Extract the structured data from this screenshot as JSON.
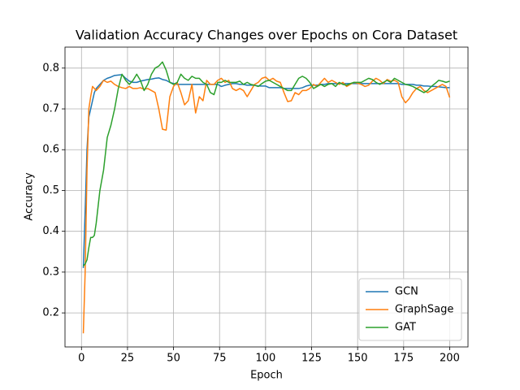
{
  "chart_data": {
    "type": "line",
    "title": "Validation Accuracy Changes over Epochs on Cora Dataset",
    "x_label": "Epoch",
    "y_label": "Accuracy",
    "x": [
      1,
      2,
      3,
      4,
      5,
      6,
      7,
      8,
      10,
      12,
      14,
      16,
      18,
      20,
      22,
      24,
      26,
      28,
      30,
      32,
      34,
      36,
      38,
      40,
      42,
      44,
      46,
      48,
      50,
      52,
      54,
      56,
      58,
      60,
      62,
      64,
      66,
      68,
      70,
      72,
      74,
      76,
      78,
      80,
      82,
      84,
      86,
      88,
      90,
      92,
      94,
      96,
      98,
      100,
      102,
      104,
      106,
      108,
      110,
      112,
      114,
      116,
      118,
      120,
      122,
      124,
      126,
      128,
      130,
      132,
      134,
      136,
      138,
      140,
      142,
      144,
      146,
      148,
      150,
      152,
      154,
      156,
      158,
      160,
      162,
      164,
      166,
      168,
      170,
      172,
      174,
      176,
      178,
      180,
      182,
      184,
      186,
      188,
      190,
      192,
      194,
      196,
      198,
      200
    ],
    "series": [
      {
        "name": "GCN",
        "color": "#1f77b4",
        "values": [
          0.31,
          0.45,
          0.6,
          0.68,
          0.7,
          0.72,
          0.74,
          0.75,
          0.76,
          0.77,
          0.775,
          0.778,
          0.782,
          0.783,
          0.784,
          0.775,
          0.768,
          0.765,
          0.765,
          0.768,
          0.77,
          0.772,
          0.773,
          0.775,
          0.776,
          0.772,
          0.77,
          0.765,
          0.762,
          0.76,
          0.76,
          0.76,
          0.76,
          0.76,
          0.76,
          0.76,
          0.76,
          0.76,
          0.76,
          0.76,
          0.76,
          0.755,
          0.758,
          0.76,
          0.762,
          0.762,
          0.76,
          0.76,
          0.758,
          0.758,
          0.758,
          0.756,
          0.756,
          0.756,
          0.752,
          0.752,
          0.752,
          0.752,
          0.75,
          0.75,
          0.75,
          0.75,
          0.75,
          0.752,
          0.756,
          0.758,
          0.758,
          0.758,
          0.76,
          0.76,
          0.762,
          0.762,
          0.762,
          0.762,
          0.762,
          0.762,
          0.762,
          0.762,
          0.762,
          0.762,
          0.762,
          0.762,
          0.762,
          0.762,
          0.762,
          0.762,
          0.762,
          0.762,
          0.762,
          0.762,
          0.76,
          0.76,
          0.76,
          0.76,
          0.758,
          0.758,
          0.756,
          0.756,
          0.755,
          0.755,
          0.754,
          0.753,
          0.752,
          0.752
        ]
      },
      {
        "name": "GraphSage",
        "color": "#ff7f0e",
        "values": [
          0.15,
          0.3,
          0.55,
          0.7,
          0.73,
          0.755,
          0.75,
          0.745,
          0.755,
          0.77,
          0.765,
          0.768,
          0.76,
          0.755,
          0.752,
          0.75,
          0.755,
          0.75,
          0.75,
          0.752,
          0.748,
          0.75,
          0.745,
          0.74,
          0.7,
          0.65,
          0.648,
          0.73,
          0.755,
          0.765,
          0.74,
          0.71,
          0.72,
          0.76,
          0.69,
          0.73,
          0.72,
          0.77,
          0.76,
          0.76,
          0.77,
          0.775,
          0.765,
          0.77,
          0.75,
          0.745,
          0.75,
          0.745,
          0.73,
          0.745,
          0.76,
          0.765,
          0.775,
          0.778,
          0.77,
          0.775,
          0.768,
          0.765,
          0.74,
          0.718,
          0.72,
          0.74,
          0.735,
          0.745,
          0.745,
          0.75,
          0.76,
          0.755,
          0.765,
          0.775,
          0.765,
          0.77,
          0.765,
          0.76,
          0.765,
          0.755,
          0.76,
          0.765,
          0.763,
          0.76,
          0.755,
          0.758,
          0.768,
          0.775,
          0.77,
          0.762,
          0.772,
          0.768,
          0.77,
          0.765,
          0.73,
          0.715,
          0.725,
          0.74,
          0.75,
          0.755,
          0.745,
          0.74,
          0.745,
          0.75,
          0.755,
          0.76,
          0.755,
          0.728
        ]
      },
      {
        "name": "GAT",
        "color": "#2ca02c",
        "values": [
          0.315,
          0.32,
          0.33,
          0.36,
          0.385,
          0.385,
          0.39,
          0.42,
          0.5,
          0.55,
          0.63,
          0.66,
          0.7,
          0.75,
          0.785,
          0.77,
          0.76,
          0.77,
          0.785,
          0.77,
          0.745,
          0.76,
          0.785,
          0.8,
          0.805,
          0.815,
          0.795,
          0.765,
          0.76,
          0.765,
          0.785,
          0.775,
          0.77,
          0.78,
          0.775,
          0.775,
          0.765,
          0.76,
          0.74,
          0.735,
          0.765,
          0.765,
          0.77,
          0.765,
          0.765,
          0.765,
          0.768,
          0.76,
          0.765,
          0.76,
          0.758,
          0.755,
          0.762,
          0.768,
          0.77,
          0.765,
          0.76,
          0.755,
          0.75,
          0.745,
          0.745,
          0.76,
          0.775,
          0.78,
          0.775,
          0.765,
          0.75,
          0.755,
          0.76,
          0.755,
          0.76,
          0.762,
          0.755,
          0.765,
          0.76,
          0.758,
          0.762,
          0.765,
          0.765,
          0.765,
          0.77,
          0.775,
          0.772,
          0.765,
          0.76,
          0.765,
          0.77,
          0.765,
          0.775,
          0.77,
          0.765,
          0.76,
          0.758,
          0.755,
          0.75,
          0.745,
          0.74,
          0.745,
          0.755,
          0.762,
          0.77,
          0.768,
          0.765,
          0.768
        ]
      }
    ],
    "xlim": [
      -8.95,
      209.95
    ],
    "xticks": [
      0,
      25,
      50,
      75,
      100,
      125,
      150,
      175,
      200
    ],
    "ylim": [
      0.1166,
      0.8514
    ],
    "yticks": [
      0.2,
      0.3,
      0.4,
      0.5,
      0.6,
      0.7,
      0.8
    ],
    "grid": true,
    "legend": "lower right"
  }
}
